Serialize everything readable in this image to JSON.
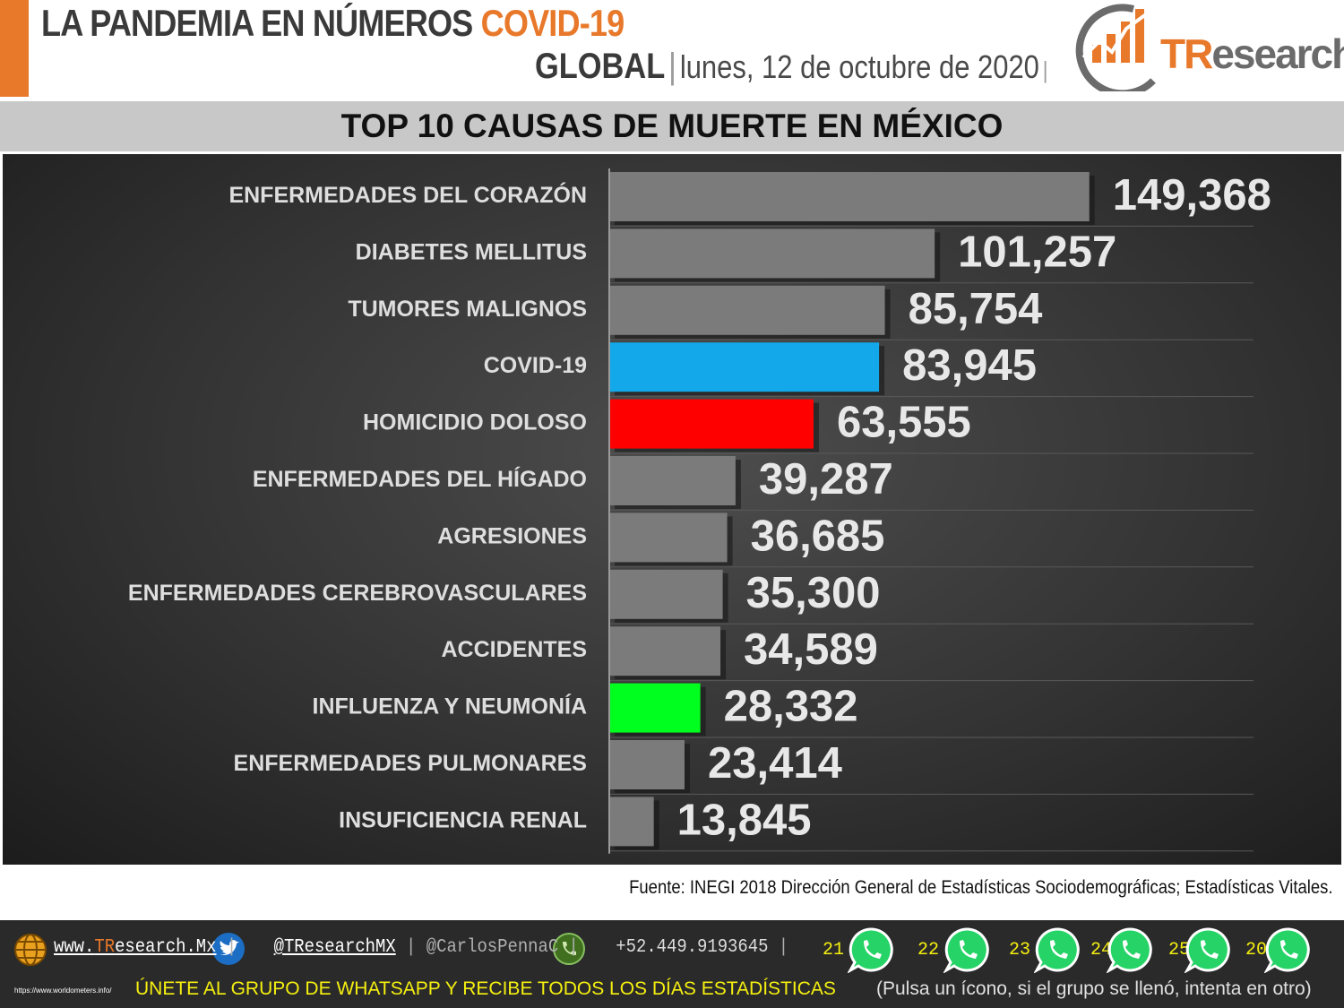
{
  "header": {
    "title_main": "LA PANDEMIA EN NÚMEROS",
    "title_accent": "COVID-19",
    "region": "GLOBAL",
    "separator": "|",
    "date": "lunes, 12 de octubre de 2020",
    "logo_t": "TR",
    "logo_rest": "esearch"
  },
  "banner": {
    "title": "TOP 10 CAUSAS DE MUERTE EN MÉXICO"
  },
  "chart_data": {
    "type": "bar",
    "orientation": "horizontal",
    "title": "TOP 10 CAUSAS DE MUERTE EN MÉXICO",
    "categories": [
      "ENFERMEDADES DEL CORAZÓN",
      "DIABETES MELLITUS",
      "TUMORES MALIGNOS",
      "COVID-19",
      "HOMICIDIO DOLOSO",
      "ENFERMEDADES DEL HÍGADO",
      "AGRESIONES",
      "ENFERMEDADES CEREBROVASCULARES",
      "ACCIDENTES",
      "INFLUENZA Y NEUMONÍA",
      "ENFERMEDADES PULMONARES",
      "INSUFICIENCIA RENAL"
    ],
    "values": [
      149368,
      101257,
      85754,
      83945,
      63555,
      39287,
      36685,
      35300,
      34589,
      28332,
      23414,
      13845
    ],
    "value_labels": [
      "149,368",
      "101,257",
      "85,754",
      "83,945",
      "63,555",
      "39,287",
      "36,685",
      "35,300",
      "34,589",
      "28,332",
      "23,414",
      "13,845"
    ],
    "colors": [
      "#7b7b7b",
      "#7b7b7b",
      "#7b7b7b",
      "#12a8ea",
      "#ff0000",
      "#7b7b7b",
      "#7b7b7b",
      "#7b7b7b",
      "#7b7b7b",
      "#00ff1e",
      "#7b7b7b",
      "#7b7b7b"
    ],
    "default_color": "#7b7b7b",
    "grid": true,
    "legend": "none"
  },
  "source": "Fuente: INEGI 2018 Dirección General de Estadísticas Sociodemográficas; Estadísticas Vitales.",
  "footer": {
    "web_prefix": "www.",
    "web_brand": "TR",
    "web_rest": "esearch.Mx",
    "twitter": "@TResearchMX",
    "personal": "@CarlosPennaC",
    "phone": "+52.449.9193645",
    "sep": "|",
    "url_small": "https://www.worldometers.info/",
    "join": "ÚNETE AL GRUPO DE WHATSAPP Y RECIBE TODOS LOS DÍAS ESTADÍSTICAS",
    "join_note": "(Pulsa un ícono, si el grupo se llenó, intenta en otro)",
    "groups": [
      "21",
      "22",
      "23",
      "24",
      "25",
      "20"
    ]
  }
}
